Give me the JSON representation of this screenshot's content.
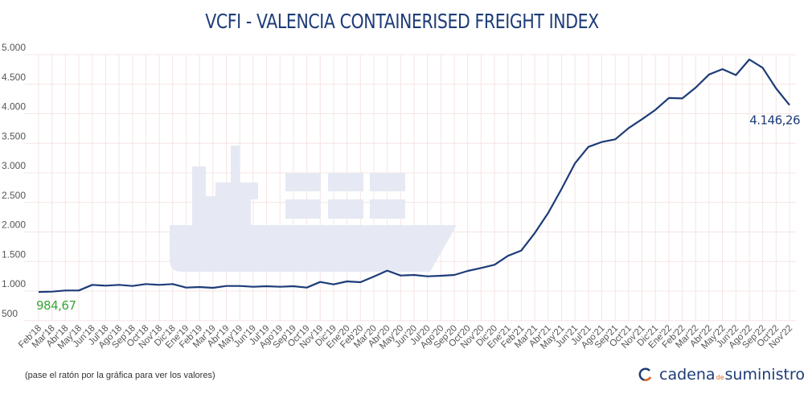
{
  "chart_data": {
    "type": "line",
    "title": "VCFI - VALENCIA CONTAINERISED FREIGHT INDEX",
    "xlabel": "",
    "ylabel": "",
    "ylim": [
      500,
      5000
    ],
    "yticks": [
      500,
      1000,
      1500,
      2000,
      2500,
      3000,
      3500,
      4000,
      4500,
      5000
    ],
    "ytick_labels": [
      "500",
      "1.000",
      "1.500",
      "2.000",
      "2.500",
      "3.000",
      "3.500",
      "4.000",
      "4.500",
      "5.000"
    ],
    "grid": true,
    "line_color": "#1d3c78",
    "categories": [
      "Feb'18",
      "Mar'18",
      "Abr'18",
      "May'18",
      "Jun'18",
      "Jul'18",
      "Ago'18",
      "Sep'18",
      "Oct'18",
      "Nov'18",
      "Dic'18",
      "Ene'19",
      "Feb'19",
      "Mar'19",
      "Abr'19",
      "May'19",
      "Jun'19",
      "Jul'19",
      "Ago'19",
      "Sep'19",
      "Oct'19",
      "Nov'19",
      "Dic'19",
      "Ene'20",
      "Feb'20",
      "Mar'20",
      "Abr'20",
      "May'20",
      "Jun'20",
      "Jul'20",
      "Ago'20",
      "Sep'20",
      "Oct'20",
      "Nov'20",
      "Dic'20",
      "Ene'21",
      "Feb'21",
      "Mar'21",
      "Abr'21",
      "May'21",
      "Jun'21",
      "Jul'21",
      "Ago'21",
      "Sep'21",
      "Oct'21",
      "Nov'21",
      "Dic'21",
      "Ene'22",
      "Feb'22",
      "Mar'22",
      "Abr'22",
      "May'22",
      "Jun'22",
      "Ago'22",
      "Sep'22",
      "Oct'22",
      "Nov'22"
    ],
    "values": [
      984.67,
      990,
      1010,
      1010,
      1105,
      1091,
      1105,
      1086,
      1118,
      1105,
      1118,
      1059,
      1068,
      1054,
      1086,
      1086,
      1072,
      1082,
      1072,
      1082,
      1059,
      1154,
      1113,
      1163,
      1150,
      1245,
      1345,
      1263,
      1272,
      1249,
      1258,
      1272,
      1340,
      1390,
      1445,
      1596,
      1686,
      1981,
      2321,
      2729,
      3160,
      3440,
      3522,
      3568,
      3758,
      3908,
      4066,
      4266,
      4260,
      4442,
      4664,
      4755,
      4655,
      4918,
      4778,
      4429,
      4146.26
    ],
    "annotations": [
      {
        "text": "984,67",
        "color": "#3aa53a",
        "at": "Feb'18"
      },
      {
        "text": "4.146,26",
        "color": "#1d3c78",
        "at": "Nov'22"
      }
    ]
  },
  "footer": {
    "note": "(pase el ratón por la gráfica para ver los valores)",
    "logo_a": "cadena",
    "logo_b": "de",
    "logo_c": "suministro"
  },
  "colors": {
    "watermark": "#e6e9f3",
    "grid": "#f5e4e4",
    "accent": "#e06a2a"
  }
}
